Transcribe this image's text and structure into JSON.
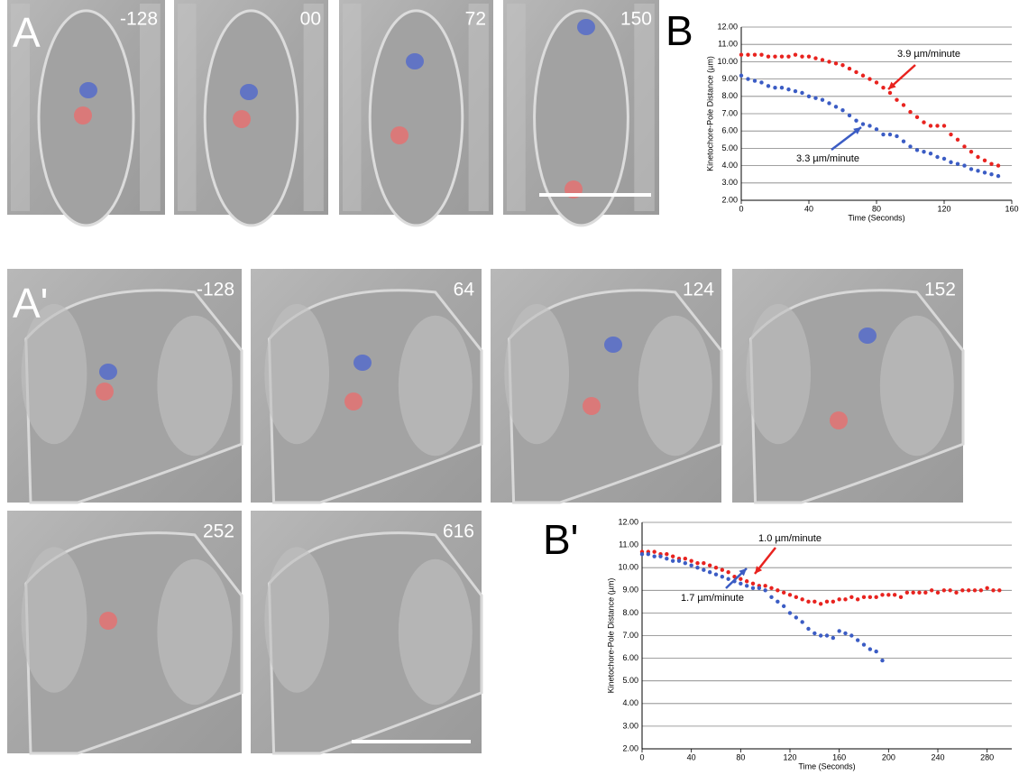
{
  "figure": {
    "panel_labels": [
      "A",
      "B",
      "A'",
      "B'"
    ],
    "images_a": [
      "-128",
      "00",
      "72",
      "150"
    ],
    "images_a_prime": [
      "-128",
      "64",
      "124",
      "152",
      "252",
      "616"
    ]
  },
  "chart_data": [
    {
      "type": "scatter",
      "xlabel": "Time (Seconds)",
      "ylabel": "Kinetochore-Pole Distance (µm)",
      "annotations": [
        "3.9 µm/minute",
        "3.3 µm/minute"
      ],
      "xlim": [
        0,
        160
      ],
      "xticks": [
        0,
        40,
        80,
        120,
        160
      ],
      "ylim": [
        2,
        12
      ],
      "yticks": [
        {
          "value": 2,
          "label": "2.00"
        },
        {
          "value": 3,
          "label": "3.00"
        },
        {
          "value": 4,
          "label": "4.00"
        },
        {
          "value": 5,
          "label": "5.00"
        },
        {
          "value": 6,
          "label": "6.00"
        },
        {
          "value": 7,
          "label": "7.00"
        },
        {
          "value": 8,
          "label": "8.00"
        },
        {
          "value": 9,
          "label": "9.00"
        },
        {
          "value": 10,
          "label": "10.00"
        },
        {
          "value": 11,
          "label": "11.00"
        },
        {
          "value": 12,
          "label": "12.00"
        }
      ],
      "grid": true,
      "series": [
        {
          "color": "#e8231f",
          "x": [
            0,
            4,
            8,
            12,
            16,
            20,
            24,
            28,
            32,
            36,
            40,
            44,
            48,
            52,
            56,
            60,
            64,
            68,
            72,
            76,
            80,
            84,
            88,
            92,
            96,
            100,
            104,
            108,
            112,
            116,
            120,
            124,
            128,
            132,
            136,
            140,
            144,
            148,
            152
          ],
          "values": [
            10.4,
            10.4,
            10.4,
            10.4,
            10.3,
            10.3,
            10.3,
            10.3,
            10.4,
            10.3,
            10.3,
            10.2,
            10.1,
            10.0,
            9.9,
            9.8,
            9.6,
            9.4,
            9.2,
            9.0,
            8.8,
            8.5,
            8.2,
            7.8,
            7.5,
            7.1,
            6.8,
            6.5,
            6.3,
            6.3,
            6.3,
            5.8,
            5.5,
            5.1,
            4.8,
            4.5,
            4.3,
            4.1,
            4.0
          ]
        },
        {
          "color": "#3b5cc4",
          "x": [
            0,
            4,
            8,
            12,
            16,
            20,
            24,
            28,
            32,
            36,
            40,
            44,
            48,
            52,
            56,
            60,
            64,
            68,
            72,
            76,
            80,
            84,
            88,
            92,
            96,
            100,
            104,
            108,
            112,
            116,
            120,
            124,
            128,
            132,
            136,
            140,
            144,
            148,
            152
          ],
          "values": [
            9.2,
            9.0,
            8.9,
            8.8,
            8.6,
            8.5,
            8.5,
            8.4,
            8.3,
            8.2,
            8.0,
            7.9,
            7.8,
            7.6,
            7.4,
            7.2,
            6.9,
            6.6,
            6.4,
            6.3,
            6.1,
            5.8,
            5.8,
            5.7,
            5.4,
            5.1,
            4.9,
            4.8,
            4.7,
            4.5,
            4.4,
            4.2,
            4.1,
            4.0,
            3.8,
            3.7,
            3.6,
            3.5,
            3.4
          ]
        }
      ]
    },
    {
      "type": "scatter",
      "xlabel": "Time (Seconds)",
      "ylabel": "Kinetochore-Pole Distance (µm)",
      "annotations": [
        "1.0 µm/minute",
        "1.7 µm/minute"
      ],
      "xlim": [
        0,
        300
      ],
      "xticks": [
        0,
        40,
        80,
        120,
        160,
        200,
        240,
        280
      ],
      "ylim": [
        2,
        12
      ],
      "yticks": [
        {
          "value": 2,
          "label": "2.00"
        },
        {
          "value": 3,
          "label": "3.00"
        },
        {
          "value": 4,
          "label": "4.00"
        },
        {
          "value": 5,
          "label": "5.00"
        },
        {
          "value": 6,
          "label": "6.00"
        },
        {
          "value": 7,
          "label": "7.00"
        },
        {
          "value": 8,
          "label": "8.00"
        },
        {
          "value": 9,
          "label": "9.00"
        },
        {
          "value": 10,
          "label": "10.00"
        },
        {
          "value": 11,
          "label": "11.00"
        },
        {
          "value": 12,
          "label": "12.00"
        }
      ],
      "grid": true,
      "series": [
        {
          "color": "#e8231f",
          "x": [
            0,
            5,
            10,
            15,
            20,
            25,
            30,
            35,
            40,
            45,
            50,
            55,
            60,
            65,
            70,
            75,
            80,
            85,
            90,
            95,
            100,
            105,
            110,
            115,
            120,
            125,
            130,
            135,
            140,
            145,
            150,
            155,
            160,
            165,
            170,
            175,
            180,
            185,
            190,
            195,
            200,
            205,
            210,
            215,
            220,
            225,
            230,
            235,
            240,
            245,
            250,
            255,
            260,
            265,
            270,
            275,
            280,
            285,
            290
          ],
          "values": [
            10.7,
            10.7,
            10.7,
            10.6,
            10.6,
            10.5,
            10.4,
            10.4,
            10.3,
            10.2,
            10.2,
            10.1,
            10.0,
            9.9,
            9.8,
            9.6,
            9.5,
            9.4,
            9.3,
            9.2,
            9.2,
            9.1,
            9.0,
            8.9,
            8.8,
            8.7,
            8.6,
            8.5,
            8.5,
            8.4,
            8.5,
            8.5,
            8.6,
            8.6,
            8.7,
            8.6,
            8.7,
            8.7,
            8.7,
            8.8,
            8.8,
            8.8,
            8.7,
            8.9,
            8.9,
            8.9,
            8.9,
            9.0,
            8.9,
            9.0,
            9.0,
            8.9,
            9.0,
            9.0,
            9.0,
            9.0,
            9.1,
            9.0,
            9.0
          ]
        },
        {
          "color": "#3b5cc4",
          "x": [
            0,
            5,
            10,
            15,
            20,
            25,
            30,
            35,
            40,
            45,
            50,
            55,
            60,
            65,
            70,
            75,
            80,
            85,
            90,
            95,
            100,
            105,
            110,
            115,
            120,
            125,
            130,
            135,
            140,
            145,
            150,
            155,
            160,
            165,
            170,
            175,
            180,
            185,
            190,
            195
          ],
          "values": [
            10.6,
            10.6,
            10.5,
            10.5,
            10.4,
            10.3,
            10.3,
            10.2,
            10.1,
            10.0,
            9.9,
            9.8,
            9.7,
            9.6,
            9.5,
            9.4,
            9.3,
            9.2,
            9.1,
            9.1,
            9.0,
            8.7,
            8.5,
            8.3,
            8.0,
            7.8,
            7.6,
            7.3,
            7.1,
            7.0,
            7.0,
            6.9,
            7.2,
            7.1,
            7.0,
            6.8,
            6.6,
            6.4,
            6.3,
            5.9
          ]
        }
      ]
    }
  ]
}
